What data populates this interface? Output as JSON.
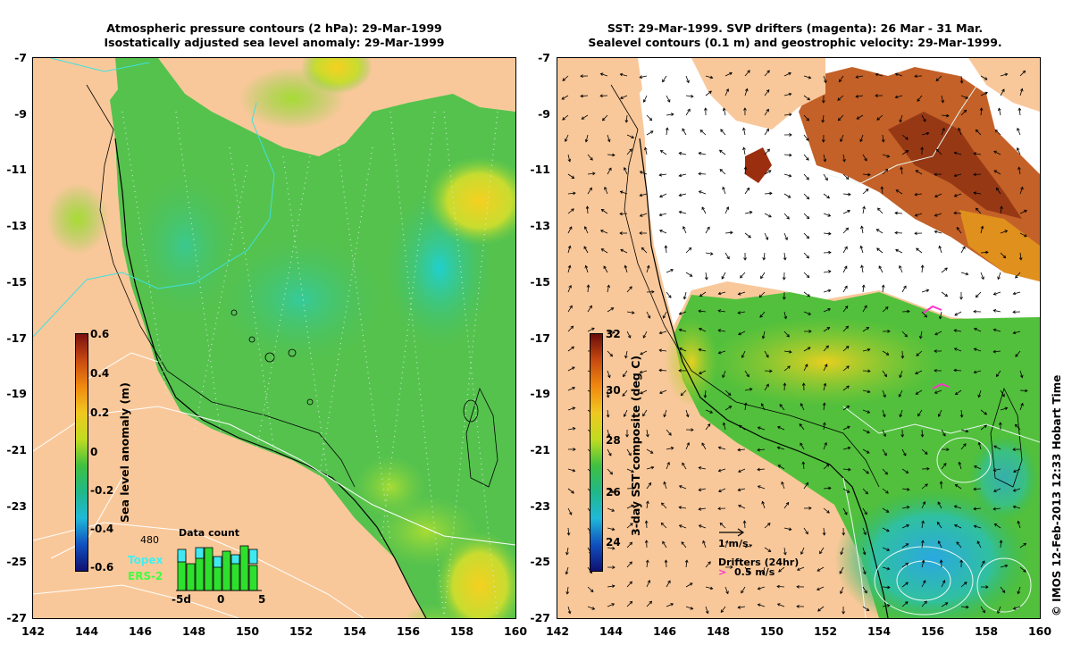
{
  "left_panel": {
    "title_line1": "Atmospheric pressure contours (2 hPa): 29-Mar-1999",
    "title_line2": "Isostatically adjusted sea level anomaly: 29-Mar-1999",
    "colorbar_label": "Sea level anomaly (m)",
    "colorbar_ticks": [
      "0.6",
      "0.4",
      "0.2",
      "0",
      "-0.2",
      "-0.4",
      "-0.6"
    ],
    "data_count": {
      "title": "Data count",
      "max_label": "480",
      "legend_topex": "Topex",
      "legend_ers2": "ERS-2",
      "x_ticks": [
        "-5d",
        "0",
        "5"
      ]
    }
  },
  "right_panel": {
    "title_line1": "SST: 29-Mar-1999. SVP drifters (magenta): 26 Mar - 31 Mar.",
    "title_line2": "Sealevel contours (0.1 m) and geostrophic velocity: 29-Mar-1999.",
    "colorbar_label": "3-day SST composite (deg C)",
    "colorbar_ticks": [
      "32",
      "30",
      "28",
      "26",
      "24"
    ],
    "velocity_scale_label": "1 m/s",
    "drifters_label": "Drifters (24hr)",
    "drifter_speed_label": "0.5 m/s"
  },
  "axes": {
    "lat_ticks": [
      "-7",
      "-9",
      "-11",
      "-13",
      "-15",
      "-17",
      "-19",
      "-21",
      "-23",
      "-25",
      "-27"
    ],
    "lon_ticks": [
      "142",
      "144",
      "146",
      "148",
      "150",
      "152",
      "154",
      "156",
      "158",
      "160"
    ]
  },
  "credit": "© IMOS 12-Feb-2013 12:33 Hobart Time",
  "colors": {
    "land": "#f9c89a",
    "sla_green": "#4cc24a",
    "sla_cyan": "#22c7c7",
    "sst_warm": "#c0501a",
    "drifter": "#ff33cc"
  }
}
